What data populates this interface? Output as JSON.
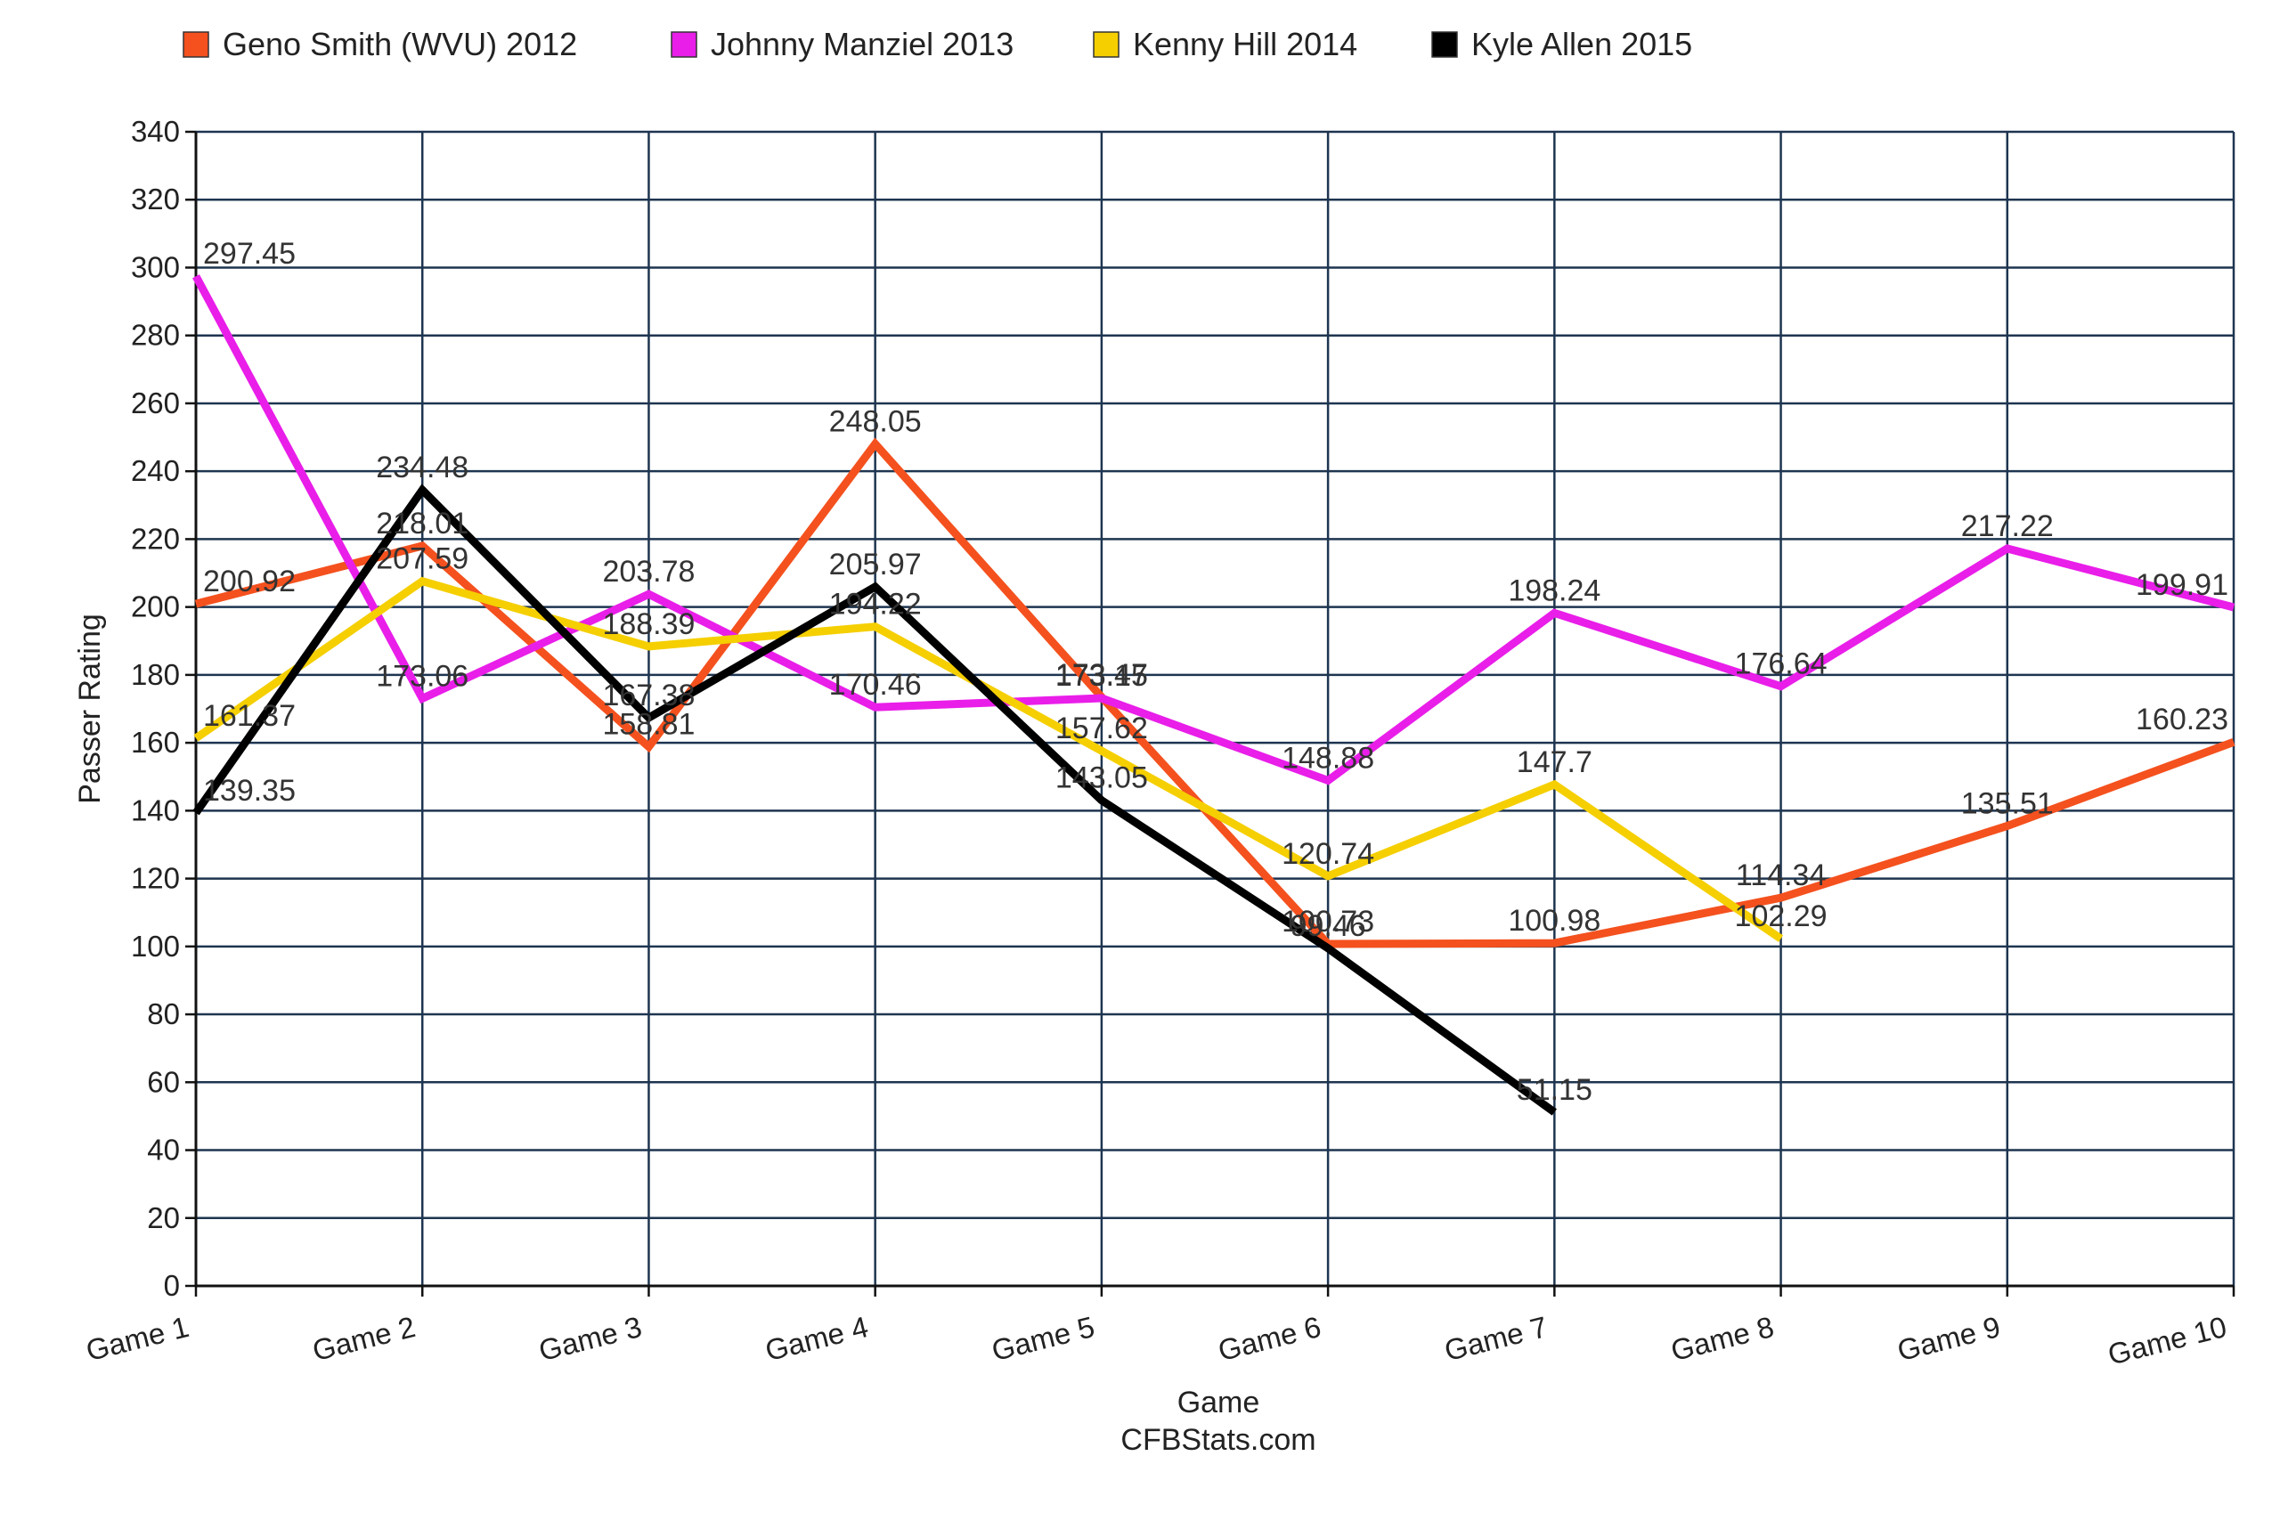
{
  "chart_data": {
    "type": "line",
    "categories": [
      "Game 1",
      "Game 2",
      "Game 3",
      "Game 4",
      "Game 5",
      "Game 6",
      "Game 7",
      "Game 8",
      "Game 9",
      "Game 10"
    ],
    "series": [
      {
        "name": "Geno Smith (WVU) 2012",
        "color": "#f4511e",
        "values": [
          200.92,
          218.01,
          158.81,
          248.05,
          173.47,
          100.73,
          100.98,
          114.34,
          135.51,
          160.23
        ]
      },
      {
        "name": "Johnny Manziel 2013",
        "color": "#e91ee9",
        "values": [
          297.45,
          173.06,
          203.78,
          170.46,
          173.15,
          148.88,
          198.24,
          176.64,
          217.22,
          199.91
        ]
      },
      {
        "name": "Kenny Hill 2014",
        "color": "#f5cf00",
        "values": [
          161.37,
          207.59,
          188.39,
          194.22,
          157.62,
          120.74,
          147.7,
          102.29,
          null,
          null
        ]
      },
      {
        "name": "Kyle Allen 2015",
        "color": "#000000",
        "values": [
          139.35,
          234.48,
          167.38,
          205.97,
          143.05,
          99.46,
          51.15,
          null,
          null,
          null
        ]
      }
    ],
    "ylabel": "Passer Rating",
    "xlabel": "Game",
    "source": "CFBStats.com",
    "ylim": [
      0,
      340
    ],
    "yticks": [
      0,
      20,
      40,
      60,
      80,
      100,
      120,
      140,
      160,
      180,
      200,
      220,
      240,
      260,
      280,
      300,
      320,
      340
    ],
    "grid": true,
    "legend_position": "top"
  }
}
